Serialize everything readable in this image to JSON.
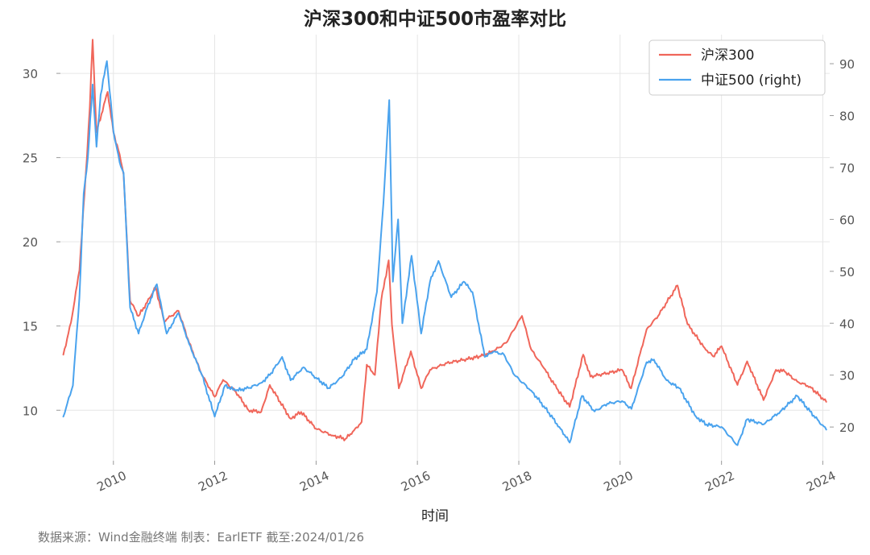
{
  "chart_data": {
    "type": "line",
    "title": "沪深300和中证500市盈率对比",
    "xlabel": "时间",
    "ylabel_left": "",
    "ylabel_right": "",
    "x_range": [
      "2008-12-15",
      "2024-02-20"
    ],
    "ylim_left": [
      7.0,
      32.3
    ],
    "ylim_right": [
      13.5,
      95.6
    ],
    "left_ticks": [
      "10",
      "15",
      "20",
      "25",
      "30"
    ],
    "right_ticks": [
      "20",
      "30",
      "40",
      "50",
      "60",
      "70",
      "80",
      "90"
    ],
    "x_ticks": [
      "2010",
      "2012",
      "2014",
      "2016",
      "2018",
      "2020",
      "2022",
      "2024"
    ],
    "grid": true,
    "legend_position": "top-right",
    "series": [
      {
        "name": "沪深300",
        "axis": "left",
        "color": "#f0665a",
        "points": [
          [
            "2009-01-05",
            13.3
          ],
          [
            "2009-03-01",
            15.2
          ],
          [
            "2009-05-01",
            18.3
          ],
          [
            "2009-06-15",
            23.9
          ],
          [
            "2009-07-15",
            28.0
          ],
          [
            "2009-08-04",
            32.0
          ],
          [
            "2009-09-01",
            26.5
          ],
          [
            "2009-11-20",
            28.9
          ],
          [
            "2010-01-01",
            26.5
          ],
          [
            "2010-02-15",
            25.2
          ],
          [
            "2010-03-15",
            24.0
          ],
          [
            "2010-05-01",
            16.5
          ],
          [
            "2010-07-01",
            15.6
          ],
          [
            "2010-09-01",
            16.4
          ],
          [
            "2010-11-01",
            17.3
          ],
          [
            "2011-01-01",
            15.3
          ],
          [
            "2011-04-15",
            15.9
          ],
          [
            "2011-07-01",
            14.0
          ],
          [
            "2011-10-01",
            12.1
          ],
          [
            "2012-01-01",
            10.8
          ],
          [
            "2012-03-01",
            11.8
          ],
          [
            "2012-06-01",
            11.1
          ],
          [
            "2012-09-01",
            10.0
          ],
          [
            "2012-12-01",
            9.9
          ],
          [
            "2013-02-01",
            11.5
          ],
          [
            "2013-06-30",
            9.5
          ],
          [
            "2013-09-15",
            9.9
          ],
          [
            "2014-01-01",
            8.9
          ],
          [
            "2014-05-01",
            8.5
          ],
          [
            "2014-08-01",
            8.3
          ],
          [
            "2014-10-01",
            8.8
          ],
          [
            "2014-11-25",
            9.3
          ],
          [
            "2015-01-01",
            12.7
          ],
          [
            "2015-03-01",
            12.1
          ],
          [
            "2015-04-15",
            16.5
          ],
          [
            "2015-06-08",
            18.9
          ],
          [
            "2015-07-01",
            15.1
          ],
          [
            "2015-08-20",
            11.3
          ],
          [
            "2015-11-15",
            13.5
          ],
          [
            "2016-01-28",
            11.3
          ],
          [
            "2016-04-01",
            12.4
          ],
          [
            "2016-08-01",
            12.8
          ],
          [
            "2016-12-01",
            13.0
          ],
          [
            "2017-04-01",
            13.2
          ],
          [
            "2017-07-01",
            13.5
          ],
          [
            "2017-10-01",
            14.0
          ],
          [
            "2018-01-24",
            15.6
          ],
          [
            "2018-04-01",
            13.6
          ],
          [
            "2018-07-01",
            12.5
          ],
          [
            "2018-10-01",
            11.3
          ],
          [
            "2019-01-03",
            10.2
          ],
          [
            "2019-04-10",
            13.3
          ],
          [
            "2019-06-01",
            12.0
          ],
          [
            "2019-10-01",
            12.2
          ],
          [
            "2020-01-15",
            12.4
          ],
          [
            "2020-03-20",
            11.3
          ],
          [
            "2020-07-10",
            14.8
          ],
          [
            "2020-10-01",
            15.6
          ],
          [
            "2021-01-01",
            16.8
          ],
          [
            "2021-02-18",
            17.4
          ],
          [
            "2021-05-01",
            15.1
          ],
          [
            "2021-09-01",
            13.7
          ],
          [
            "2021-11-01",
            13.2
          ],
          [
            "2022-01-01",
            13.8
          ],
          [
            "2022-04-26",
            11.5
          ],
          [
            "2022-07-05",
            12.9
          ],
          [
            "2022-10-31",
            10.6
          ],
          [
            "2023-01-28",
            12.4
          ],
          [
            "2023-04-01",
            12.3
          ],
          [
            "2023-07-01",
            11.7
          ],
          [
            "2023-10-01",
            11.4
          ],
          [
            "2024-01-26",
            10.5
          ]
        ]
      },
      {
        "name": "中证500 (right)",
        "axis": "right",
        "color": "#4aa3ee",
        "points": [
          [
            "2009-01-05",
            22.0
          ],
          [
            "2009-03-15",
            28.0
          ],
          [
            "2009-05-01",
            45.0
          ],
          [
            "2009-06-01",
            65.0
          ],
          [
            "2009-07-01",
            72.0
          ],
          [
            "2009-08-04",
            86.0
          ],
          [
            "2009-09-01",
            74.0
          ],
          [
            "2009-10-01",
            84.0
          ],
          [
            "2009-11-15",
            90.5
          ],
          [
            "2010-01-01",
            77.0
          ],
          [
            "2010-02-15",
            71.0
          ],
          [
            "2010-03-15",
            69.0
          ],
          [
            "2010-05-01",
            43.0
          ],
          [
            "2010-07-01",
            38.0
          ],
          [
            "2010-09-01",
            43.0
          ],
          [
            "2010-11-10",
            47.5
          ],
          [
            "2011-01-20",
            38.0
          ],
          [
            "2011-04-15",
            42.0
          ],
          [
            "2011-07-01",
            36.0
          ],
          [
            "2011-10-01",
            30.0
          ],
          [
            "2012-01-01",
            22.0
          ],
          [
            "2012-03-15",
            28.0
          ],
          [
            "2012-06-01",
            27.0
          ],
          [
            "2012-09-01",
            27.5
          ],
          [
            "2012-12-01",
            28.5
          ],
          [
            "2013-02-01",
            30.0
          ],
          [
            "2013-05-01",
            33.5
          ],
          [
            "2013-07-01",
            29.0
          ],
          [
            "2013-10-01",
            31.5
          ],
          [
            "2014-01-01",
            29.5
          ],
          [
            "2014-04-01",
            27.5
          ],
          [
            "2014-07-01",
            29.5
          ],
          [
            "2014-10-01",
            33.0
          ],
          [
            "2015-01-01",
            35.0
          ],
          [
            "2015-03-15",
            46.0
          ],
          [
            "2015-05-01",
            63.0
          ],
          [
            "2015-06-12",
            83.0
          ],
          [
            "2015-07-08",
            48.0
          ],
          [
            "2015-08-15",
            60.0
          ],
          [
            "2015-09-15",
            40.0
          ],
          [
            "2015-11-20",
            53.0
          ],
          [
            "2016-01-28",
            38.0
          ],
          [
            "2016-04-01",
            48.0
          ],
          [
            "2016-06-01",
            52.0
          ],
          [
            "2016-09-01",
            45.0
          ],
          [
            "2016-12-01",
            48.0
          ],
          [
            "2017-02-01",
            46.0
          ],
          [
            "2017-05-01",
            33.5
          ],
          [
            "2017-07-01",
            34.5
          ],
          [
            "2017-09-15",
            34.0
          ],
          [
            "2017-12-01",
            30.0
          ],
          [
            "2018-04-01",
            27.0
          ],
          [
            "2018-07-01",
            24.0
          ],
          [
            "2018-10-20",
            20.0
          ],
          [
            "2019-01-03",
            17.0
          ],
          [
            "2019-04-01",
            26.0
          ],
          [
            "2019-07-01",
            23.0
          ],
          [
            "2019-10-01",
            24.5
          ],
          [
            "2020-01-15",
            25.0
          ],
          [
            "2020-03-23",
            23.5
          ],
          [
            "2020-07-10",
            32.5
          ],
          [
            "2020-09-01",
            33.0
          ],
          [
            "2020-12-01",
            29.0
          ],
          [
            "2021-03-01",
            27.5
          ],
          [
            "2021-07-01",
            22.0
          ],
          [
            "2021-09-15",
            20.5
          ],
          [
            "2022-01-01",
            20.0
          ],
          [
            "2022-04-26",
            16.5
          ],
          [
            "2022-07-05",
            21.5
          ],
          [
            "2022-10-31",
            20.5
          ],
          [
            "2023-03-01",
            23.0
          ],
          [
            "2023-07-01",
            26.0
          ],
          [
            "2023-10-01",
            23.0
          ],
          [
            "2024-01-26",
            19.5
          ]
        ]
      }
    ]
  },
  "footer": {
    "note": "数据来源：Wind金融终端 制表：EarlETF 截至:2024/01/26"
  }
}
